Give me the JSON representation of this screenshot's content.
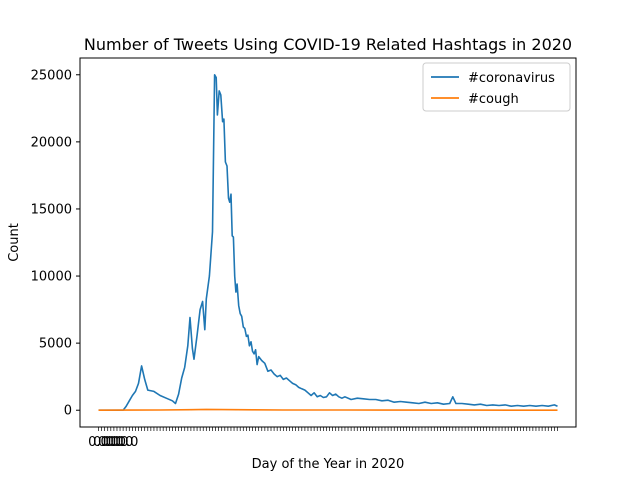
{
  "chart_data": {
    "type": "line",
    "title": "Number of Tweets Using COVID-19 Related Hashtags in 2020",
    "xlabel": "Day of the Year in 2020",
    "ylabel": "Count",
    "ylim": [
      -1250,
      26250
    ],
    "yticks": [
      0,
      5000,
      10000,
      15000,
      20000,
      25000
    ],
    "legend_position": "top-right",
    "grid": false,
    "xtick_label_text": "0.0",
    "xtick_count": 150,
    "series": [
      {
        "name": "#coronavirus",
        "color": "#1f77b4",
        "points": [
          [
            0,
            0
          ],
          [
            8,
            0
          ],
          [
            9,
            300
          ],
          [
            10,
            700
          ],
          [
            11,
            1100
          ],
          [
            12,
            1400
          ],
          [
            13,
            2000
          ],
          [
            14,
            3300
          ],
          [
            15,
            2300
          ],
          [
            16,
            1500
          ],
          [
            18,
            1400
          ],
          [
            20,
            1100
          ],
          [
            22,
            900
          ],
          [
            24,
            700
          ],
          [
            25,
            500
          ],
          [
            26,
            1200
          ],
          [
            27,
            2400
          ],
          [
            28,
            3200
          ],
          [
            29,
            4800
          ],
          [
            29.7,
            6900
          ],
          [
            30.5,
            4600
          ],
          [
            31,
            3800
          ],
          [
            32,
            5600
          ],
          [
            33,
            7500
          ],
          [
            33.8,
            8100
          ],
          [
            34.5,
            6000
          ],
          [
            35,
            8300
          ],
          [
            36,
            10000
          ],
          [
            37,
            13300
          ],
          [
            37.7,
            25000
          ],
          [
            38.2,
            24800
          ],
          [
            38.6,
            22000
          ],
          [
            39.2,
            23800
          ],
          [
            39.7,
            23500
          ],
          [
            40.3,
            21500
          ],
          [
            40.7,
            21700
          ],
          [
            41.2,
            18500
          ],
          [
            41.7,
            18200
          ],
          [
            42.2,
            15800
          ],
          [
            42.6,
            15500
          ],
          [
            43,
            16100
          ],
          [
            43.4,
            13000
          ],
          [
            43.8,
            12900
          ],
          [
            44.2,
            10000
          ],
          [
            44.6,
            8800
          ],
          [
            45,
            9400
          ],
          [
            45.5,
            7800
          ],
          [
            46,
            7200
          ],
          [
            46.5,
            7000
          ],
          [
            47,
            6200
          ],
          [
            47.5,
            6100
          ],
          [
            48,
            5500
          ],
          [
            48.5,
            5600
          ],
          [
            49,
            4800
          ],
          [
            49.5,
            5100
          ],
          [
            50,
            4400
          ],
          [
            50.5,
            4200
          ],
          [
            51,
            4500
          ],
          [
            51.5,
            3400
          ],
          [
            52,
            4000
          ],
          [
            53,
            3700
          ],
          [
            54,
            3500
          ],
          [
            55,
            2900
          ],
          [
            56,
            3000
          ],
          [
            57,
            2700
          ],
          [
            58,
            2500
          ],
          [
            59,
            2600
          ],
          [
            60,
            2300
          ],
          [
            61,
            2400
          ],
          [
            62,
            2200
          ],
          [
            63,
            2000
          ],
          [
            64,
            1900
          ],
          [
            65,
            1700
          ],
          [
            66,
            1600
          ],
          [
            67,
            1500
          ],
          [
            68,
            1300
          ],
          [
            69,
            1100
          ],
          [
            70,
            1300
          ],
          [
            71,
            1000
          ],
          [
            72,
            1100
          ],
          [
            73,
            950
          ],
          [
            74,
            1000
          ],
          [
            75,
            1300
          ],
          [
            76,
            1100
          ],
          [
            77,
            1200
          ],
          [
            78,
            1000
          ],
          [
            79,
            900
          ],
          [
            80,
            1000
          ],
          [
            82,
            800
          ],
          [
            84,
            900
          ],
          [
            86,
            850
          ],
          [
            88,
            800
          ],
          [
            90,
            800
          ],
          [
            92,
            700
          ],
          [
            94,
            750
          ],
          [
            96,
            600
          ],
          [
            98,
            650
          ],
          [
            100,
            600
          ],
          [
            102,
            550
          ],
          [
            104,
            500
          ],
          [
            106,
            600
          ],
          [
            108,
            500
          ],
          [
            110,
            550
          ],
          [
            112,
            450
          ],
          [
            114,
            500
          ],
          [
            115,
            1000
          ],
          [
            116,
            500
          ],
          [
            118,
            500
          ],
          [
            120,
            450
          ],
          [
            122,
            400
          ],
          [
            124,
            450
          ],
          [
            126,
            350
          ],
          [
            128,
            400
          ],
          [
            130,
            350
          ],
          [
            132,
            400
          ],
          [
            134,
            300
          ],
          [
            136,
            350
          ],
          [
            138,
            300
          ],
          [
            140,
            350
          ],
          [
            142,
            300
          ],
          [
            144,
            350
          ],
          [
            146,
            300
          ],
          [
            148,
            400
          ],
          [
            149,
            300
          ]
        ]
      },
      {
        "name": "#cough",
        "color": "#ff7f0e",
        "points": [
          [
            0,
            0
          ],
          [
            10,
            10
          ],
          [
            20,
            20
          ],
          [
            30,
            40
          ],
          [
            35,
            60
          ],
          [
            40,
            50
          ],
          [
            50,
            30
          ],
          [
            60,
            20
          ],
          [
            80,
            15
          ],
          [
            100,
            10
          ],
          [
            120,
            10
          ],
          [
            149,
            5
          ]
        ]
      }
    ]
  }
}
